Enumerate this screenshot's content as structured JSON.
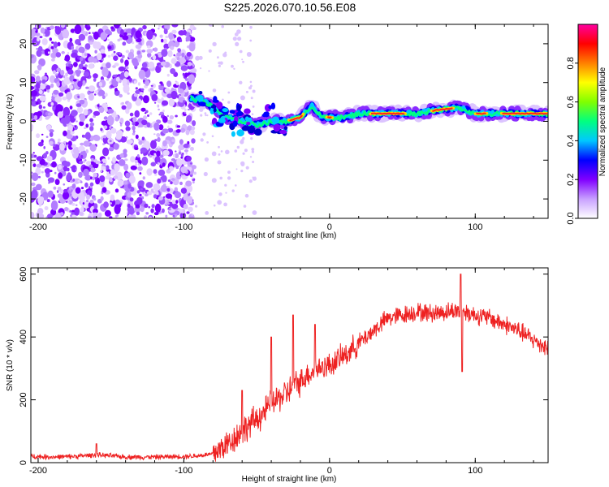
{
  "chart_data": [
    {
      "type": "heatmap",
      "title": "S225.2026.070.10.56.E08",
      "xlabel": "Height of straight line (km)",
      "ylabel": "Frequency (Hz)",
      "xlim": [
        -205,
        150
      ],
      "ylim": [
        -25,
        25
      ],
      "xticks": [
        -200,
        -100,
        0,
        100
      ],
      "yticks": [
        -20,
        -10,
        0,
        10,
        20
      ],
      "ridge": {
        "description_points": [
          [
            -95,
            6
          ],
          [
            -85,
            5
          ],
          [
            -78,
            3
          ],
          [
            -70,
            1
          ],
          [
            -60,
            0
          ],
          [
            -50,
            -1
          ],
          [
            -40,
            0
          ],
          [
            -30,
            0
          ],
          [
            -20,
            1
          ],
          [
            -12,
            4
          ],
          [
            -8,
            2
          ],
          [
            -4,
            1
          ],
          [
            0,
            1
          ],
          [
            10,
            1
          ],
          [
            20,
            2
          ],
          [
            40,
            2
          ],
          [
            60,
            2
          ],
          [
            75,
            3
          ],
          [
            90,
            3.5
          ],
          [
            100,
            2
          ],
          [
            110,
            2
          ],
          [
            130,
            2
          ],
          [
            150,
            2
          ]
        ]
      },
      "colorbar": {
        "label": "Normalized spectral amplitude",
        "ticks": [
          "0.0",
          "0.2",
          "0.4",
          "0.6",
          "0.8"
        ],
        "tick_values": [
          0.0,
          0.2,
          0.4,
          0.6,
          0.8
        ],
        "range": [
          0,
          1
        ],
        "colors": [
          "#ffffff",
          "#c8a0ff",
          "#8000ff",
          "#0000ff",
          "#00c8ff",
          "#00ff80",
          "#80ff00",
          "#ffff00",
          "#ff8000",
          "#ff0000",
          "#ff00a0"
        ]
      }
    },
    {
      "type": "line",
      "xlabel": "Height of straight line (km)",
      "ylabel": "SNR (10 * v/v)",
      "xlim": [
        -205,
        150
      ],
      "ylim": [
        0,
        620
      ],
      "xticks": [
        -200,
        -100,
        0,
        100
      ],
      "yticks": [
        0,
        200,
        400,
        600
      ],
      "color": "#ee2222",
      "series": [
        {
          "name": "SNR",
          "x": [
            -205,
            -190,
            -175,
            -160,
            -150,
            -140,
            -120,
            -100,
            -90,
            -80,
            -75,
            -70,
            -65,
            -60,
            -55,
            -50,
            -45,
            -40,
            -35,
            -30,
            -25,
            -20,
            -15,
            -10,
            -5,
            0,
            10,
            20,
            30,
            40,
            50,
            60,
            70,
            80,
            90,
            100,
            110,
            120,
            130,
            140,
            150
          ],
          "values": [
            20,
            18,
            20,
            25,
            22,
            18,
            18,
            20,
            22,
            28,
            45,
            60,
            80,
            100,
            120,
            140,
            160,
            185,
            205,
            220,
            240,
            260,
            280,
            295,
            305,
            310,
            340,
            380,
            420,
            460,
            470,
            480,
            475,
            480,
            485,
            470,
            460,
            440,
            420,
            390,
            365
          ]
        }
      ],
      "spikes": [
        {
          "x": -160,
          "value": 60
        },
        {
          "x": -60,
          "value": 230
        },
        {
          "x": -40,
          "value": 400
        },
        {
          "x": -25,
          "value": 470
        },
        {
          "x": -10,
          "value": 440
        },
        {
          "x": 90,
          "value": 600
        },
        {
          "x": 91,
          "value": 290
        }
      ]
    }
  ]
}
